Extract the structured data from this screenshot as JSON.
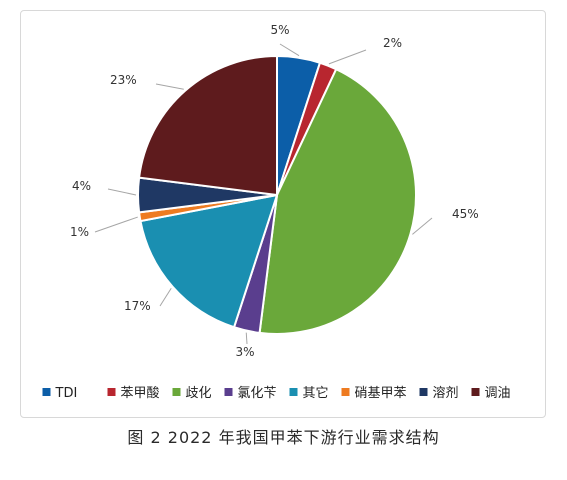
{
  "caption": "图 2 2022 年我国甲苯下游行业需求结构",
  "chart_data": {
    "type": "pie",
    "title": "",
    "legend_position": "bottom",
    "labels": [
      "TDI",
      "苯甲酸",
      "歧化",
      "氯化苄",
      "其它",
      "硝基甲苯",
      "溶剂",
      "调油"
    ],
    "values": [
      5,
      2,
      45,
      3,
      17,
      1,
      4,
      23
    ],
    "display_labels": [
      "5%",
      "2%",
      "45%",
      "3%",
      "17%",
      "1%",
      "4%",
      "23%"
    ],
    "colors": [
      "#0c5ea8",
      "#b8262f",
      "#6aa83a",
      "#5a3e8e",
      "#1a8fb1",
      "#ee7b21",
      "#1f3864",
      "#5e1b1d"
    ]
  }
}
